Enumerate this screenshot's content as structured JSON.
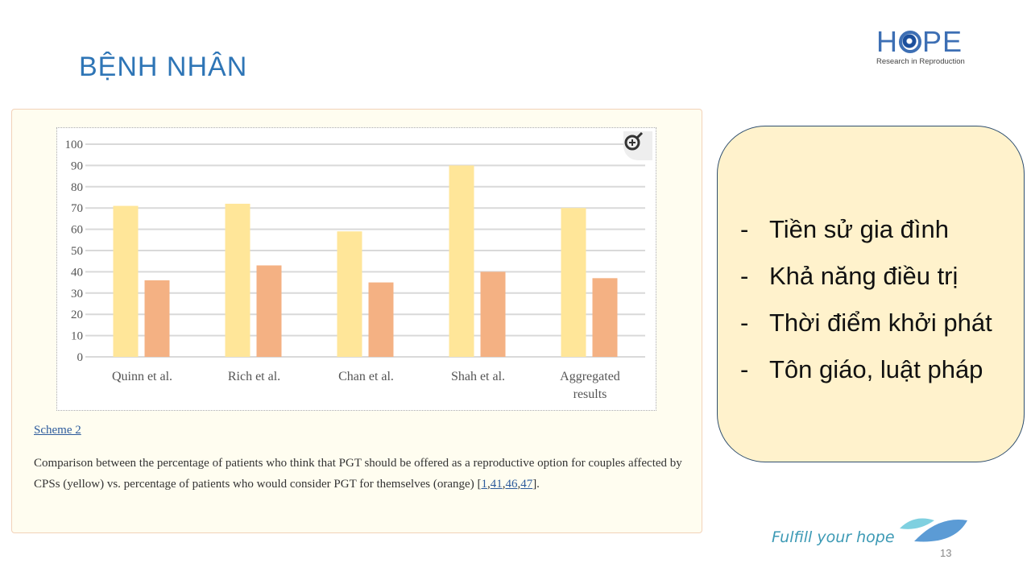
{
  "slide": {
    "title": "BỆNH NHÂN",
    "logo": {
      "word_left": "H",
      "word_right": "PE",
      "subtitle": "Research in Reproduction"
    },
    "scheme_link": "Scheme 2",
    "caption_text": "Comparison between the percentage of patients who think that PGT should be offered as a reproductive option for couples affected by CPSs (yellow) vs. percentage of patients who would consider PGT for themselves (orange) ",
    "caption_refs": [
      "1",
      "41",
      "46",
      "47"
    ],
    "bullets": [
      "Tiền sử gia đình",
      "Khả năng điều trị",
      "Thời điểm khởi phát",
      "Tôn giáo, luật pháp"
    ],
    "bullet_marker": "-",
    "tagline": "Fulfill your hope",
    "page_number": "13"
  },
  "chart_data": {
    "type": "bar",
    "categories": [
      "Quinn et al.",
      "Rich et al.",
      "Chan et al.",
      "Shah et al.",
      "Aggregated results"
    ],
    "series": [
      {
        "name": "PGT should be offered (yellow)",
        "color": "#ffe699",
        "values": [
          71,
          72,
          59,
          90,
          70
        ]
      },
      {
        "name": "Would consider PGT for themselves (orange)",
        "color": "#f4b183",
        "values": [
          36,
          43,
          35,
          40,
          37
        ]
      }
    ],
    "ylim": [
      0,
      100
    ],
    "yticks": [
      0,
      10,
      20,
      30,
      40,
      50,
      60,
      70,
      80,
      90,
      100
    ],
    "grid": true,
    "title": "",
    "xlabel": "",
    "ylabel": ""
  }
}
